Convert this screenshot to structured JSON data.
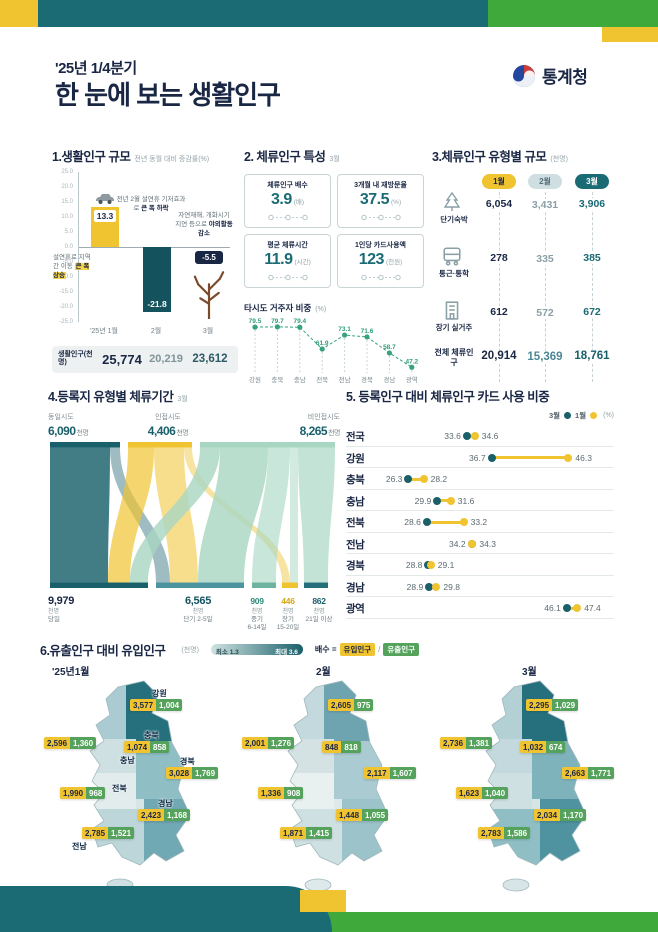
{
  "header": {
    "quarter": "'25년 1/4분기",
    "title": "한 눈에 보는 생활인구",
    "agency": "통계청"
  },
  "colors": {
    "teal": "#1a6b74",
    "green": "#3fa93c",
    "yellow": "#f0c330",
    "navy": "#1a2744"
  },
  "chart_data": [
    {
      "id": "living-population-growth",
      "type": "bar",
      "title": "1.생활인구 규모",
      "subtitle": "전년 동월 대비 증감률(%)",
      "categories": [
        "'25년 1월",
        "2월",
        "3월"
      ],
      "values": [
        13.3,
        -21.8,
        -5.5
      ],
      "ylim": [
        -25,
        25
      ],
      "ytick_step": 5,
      "annotations": [
        {
          "text": "설연휴로 지역 간 이동",
          "em": "큰 폭 상승"
        },
        {
          "text": "전년 2월 설연휴 기저효과로",
          "em": "큰 폭 하락"
        },
        {
          "text": "자연재해, 개화시기 지연 등으로",
          "em": "야외활동 감소"
        }
      ],
      "footer": {
        "label": "생활인구(천명)",
        "values": [
          "25,774",
          "20,219",
          "23,612"
        ]
      }
    },
    {
      "id": "stay-population-features",
      "type": "cards",
      "title": "2. 체류인구 특성",
      "period": "3월",
      "cards": [
        {
          "label": "체류인구 배수",
          "value": "3.9",
          "unit": "(배)"
        },
        {
          "label": "3개월 내 재방문율",
          "value": "37.5",
          "unit": "(%)"
        },
        {
          "label": "평균 체류시간",
          "value": "11.9",
          "unit": "(시간)"
        },
        {
          "label": "1인당 카드사용액",
          "value": "123",
          "unit": "(천원)"
        }
      ]
    },
    {
      "id": "nonresident-share",
      "type": "line",
      "title": "타시도 거주자 비중",
      "unit": "(%)",
      "categories": [
        "강원",
        "충북",
        "충남",
        "전북",
        "전남",
        "경북",
        "경남",
        "광역"
      ],
      "values": [
        79.5,
        79.7,
        79.4,
        61.9,
        73.1,
        71.6,
        58.7,
        47.2
      ],
      "ylim": [
        45,
        82
      ]
    },
    {
      "id": "stay-type-scale",
      "type": "table",
      "title": "3.체류인구 유형별 규모",
      "unit": "(천명)",
      "columns": [
        "1월",
        "2월",
        "3월"
      ],
      "rows": [
        {
          "label": "단기숙박",
          "icon": "tree-icon",
          "values": [
            "6,054",
            "3,431",
            "3,906"
          ]
        },
        {
          "label": "통근·통학",
          "icon": "bus-icon",
          "values": [
            "278",
            "335",
            "385"
          ]
        },
        {
          "label": "장기 실거주",
          "icon": "building-icon",
          "values": [
            "612",
            "572",
            "672"
          ]
        },
        {
          "label": "전체 체류인구",
          "icon": "",
          "values": [
            "20,914",
            "15,369",
            "18,761"
          ]
        }
      ]
    },
    {
      "id": "stay-duration-flow",
      "type": "sankey",
      "title": "4.등록지 유형별 체류기간",
      "period": "3월",
      "sources": [
        {
          "label": "동일시도",
          "value": "6,090",
          "unit": "천명",
          "color": "#19606b"
        },
        {
          "label": "인접시도",
          "value": "4,406",
          "unit": "천명",
          "color": "#f0c330"
        },
        {
          "label": "비인접시도",
          "value": "8,265",
          "unit": "천명",
          "color": "#a7d6c2"
        }
      ],
      "targets": [
        {
          "value": "9,979",
          "unit": "천명",
          "label": "당일",
          "sub": ""
        },
        {
          "value": "6,565",
          "unit": "천명",
          "label": "단기",
          "sub": "2-5일"
        },
        {
          "value": "909",
          "unit": "천명",
          "label": "중기",
          "sub": "6-14일"
        },
        {
          "value": "446",
          "unit": "천명",
          "label": "장기",
          "sub": "15-20일"
        },
        {
          "value": "862",
          "unit": "천명",
          "label": "21일 이상",
          "sub": ""
        }
      ]
    },
    {
      "id": "card-usage-share",
      "type": "dumbbell",
      "title": "5. 등록인구 대비 체류인구 카드 사용 비중",
      "unit": "(%)",
      "series_labels": [
        "3월",
        "1월"
      ],
      "march_color": "#19606b",
      "january_color": "#f0c330",
      "categories": [
        "전국",
        "강원",
        "충북",
        "충남",
        "전북",
        "전남",
        "경북",
        "경남",
        "광역"
      ],
      "march": [
        33.6,
        36.7,
        26.3,
        29.9,
        28.6,
        34.2,
        28.8,
        28.9,
        46.1
      ],
      "january": [
        34.6,
        46.3,
        28.2,
        31.6,
        33.2,
        34.3,
        29.1,
        29.8,
        47.4
      ],
      "xlim": [
        24,
        50
      ]
    },
    {
      "id": "inflow-outflow-maps",
      "type": "map",
      "title": "6.유출인구 대비 유입인구",
      "unit": "(천명)",
      "legend": {
        "min_label": "최소 1.3",
        "max_label": "최대 3.6",
        "formula_label": "배수 =",
        "inflow_label": "유입인구",
        "divider": "/",
        "outflow_label": "유출인구"
      },
      "maps": [
        {
          "month": "'25년1월",
          "regions": [
            {
              "name": "강원",
              "inflow": "3,577",
              "outflow": "1,004"
            },
            {
              "name": "충북",
              "inflow": "1,074",
              "outflow": "858"
            },
            {
              "name": "충남",
              "inflow": "2,596",
              "outflow": "1,360"
            },
            {
              "name": "경북",
              "inflow": "3,028",
              "outflow": "1,769"
            },
            {
              "name": "전북",
              "inflow": "1,990",
              "outflow": "968"
            },
            {
              "name": "경남",
              "inflow": "2,423",
              "outflow": "1,168"
            },
            {
              "name": "전남",
              "inflow": "2,785",
              "outflow": "1,521"
            }
          ]
        },
        {
          "month": "2월",
          "regions": [
            {
              "name": "강원",
              "inflow": "2,605",
              "outflow": "975"
            },
            {
              "name": "충북",
              "inflow": "848",
              "outflow": "818"
            },
            {
              "name": "충남",
              "inflow": "2,001",
              "outflow": "1,276"
            },
            {
              "name": "경북",
              "inflow": "2,117",
              "outflow": "1,607"
            },
            {
              "name": "전북",
              "inflow": "1,336",
              "outflow": "908"
            },
            {
              "name": "경남",
              "inflow": "1,448",
              "outflow": "1,055"
            },
            {
              "name": "전남",
              "inflow": "1,871",
              "outflow": "1,415"
            }
          ]
        },
        {
          "month": "3월",
          "regions": [
            {
              "name": "강원",
              "inflow": "2,295",
              "outflow": "1,029"
            },
            {
              "name": "충북",
              "inflow": "1,032",
              "outflow": "674"
            },
            {
              "name": "충남",
              "inflow": "2,736",
              "outflow": "1,381"
            },
            {
              "name": "경북",
              "inflow": "2,663",
              "outflow": "1,771"
            },
            {
              "name": "전북",
              "inflow": "1,623",
              "outflow": "1,040"
            },
            {
              "name": "경남",
              "inflow": "2,034",
              "outflow": "1,170"
            },
            {
              "name": "전남",
              "inflow": "2,783",
              "outflow": "1,586"
            }
          ]
        }
      ]
    }
  ]
}
